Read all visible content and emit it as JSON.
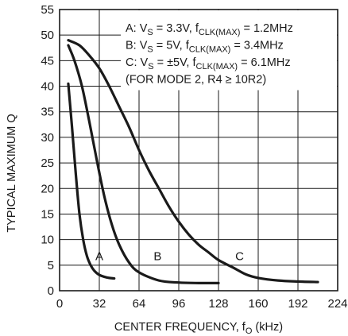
{
  "chart_data": {
    "type": "line",
    "xlabel": "CENTER FREQUENCY, f",
    "xlabel_sub": "O",
    "xlabel_suffix": " (kHz)",
    "ylabel": "TYPICAL MAXIMUM Q",
    "xlim": [
      0,
      224
    ],
    "ylim": [
      0,
      55
    ],
    "x_ticks": [
      0,
      32,
      64,
      96,
      128,
      160,
      192,
      224
    ],
    "y_ticks": [
      0,
      5,
      10,
      15,
      20,
      25,
      30,
      35,
      40,
      45,
      50,
      55
    ],
    "grid": true,
    "legend_lines": [
      {
        "parts": [
          {
            "t": "A: V"
          },
          {
            "t": "S",
            "sub": true
          },
          {
            "t": " = 3.3V, f"
          },
          {
            "t": "CLK(MAX)",
            "sub": true
          },
          {
            "t": " = 1.2MHz"
          }
        ]
      },
      {
        "parts": [
          {
            "t": "B: V"
          },
          {
            "t": "S",
            "sub": true
          },
          {
            "t": " = 5V, f"
          },
          {
            "t": "CLK(MAX)",
            "sub": true
          },
          {
            "t": " = 3.4MHz"
          }
        ]
      },
      {
        "parts": [
          {
            "t": "C: V"
          },
          {
            "t": "S",
            "sub": true
          },
          {
            "t": " = ±5V, f"
          },
          {
            "t": "CLK(MAX)",
            "sub": true
          },
          {
            "t": " = 6.1MHz"
          }
        ]
      },
      {
        "parts": [
          {
            "t": "(FOR MODE 2, R4 ≥ 10R2)"
          }
        ]
      }
    ],
    "series": [
      {
        "name": "A",
        "label_at": [
          32,
          6
        ],
        "points": [
          [
            7,
            40.5
          ],
          [
            10,
            32
          ],
          [
            13,
            23
          ],
          [
            16,
            15
          ],
          [
            19,
            10
          ],
          [
            22,
            6.8
          ],
          [
            25,
            5
          ],
          [
            28,
            3.9
          ],
          [
            32,
            3.1
          ],
          [
            38,
            2.6
          ],
          [
            44,
            2.4
          ]
        ]
      },
      {
        "name": "B",
        "label_at": [
          79,
          6
        ],
        "points": [
          [
            7,
            48
          ],
          [
            12,
            45
          ],
          [
            18,
            40
          ],
          [
            24,
            33
          ],
          [
            30,
            25.5
          ],
          [
            36,
            18.5
          ],
          [
            42,
            13
          ],
          [
            48,
            9
          ],
          [
            56,
            5.5
          ],
          [
            64,
            3.6
          ],
          [
            80,
            2
          ],
          [
            96,
            1.6
          ],
          [
            112,
            1.5
          ],
          [
            128,
            1.5
          ]
        ]
      },
      {
        "name": "C",
        "label_at": [
          145,
          6
        ],
        "points": [
          [
            7,
            49
          ],
          [
            16,
            48
          ],
          [
            24,
            46
          ],
          [
            32,
            43.5
          ],
          [
            40,
            40
          ],
          [
            48,
            36
          ],
          [
            56,
            32
          ],
          [
            64,
            27.5
          ],
          [
            72,
            23.5
          ],
          [
            80,
            20
          ],
          [
            88,
            16.5
          ],
          [
            96,
            13.5
          ],
          [
            104,
            11
          ],
          [
            112,
            9
          ],
          [
            120,
            7.5
          ],
          [
            128,
            6
          ],
          [
            140,
            4.5
          ],
          [
            150,
            3.2
          ],
          [
            160,
            2.5
          ],
          [
            176,
            2
          ],
          [
            192,
            1.8
          ],
          [
            208,
            1.7
          ]
        ]
      }
    ]
  }
}
